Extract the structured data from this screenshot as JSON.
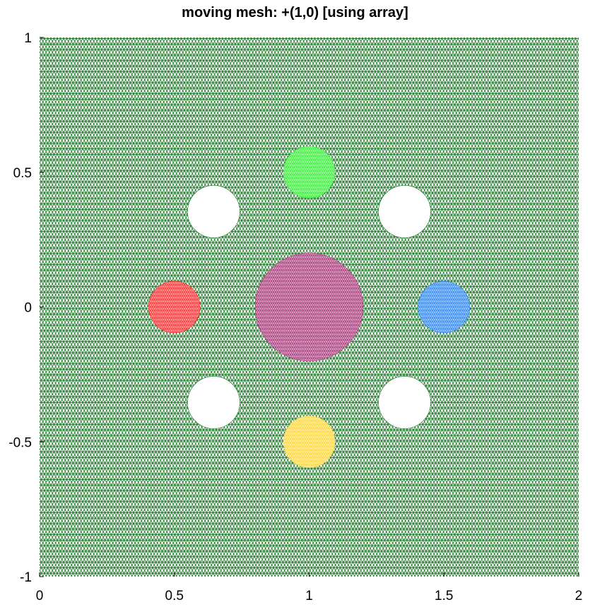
{
  "chart_data": {
    "type": "scatter",
    "title": "moving mesh: +(1,0) [using array]",
    "xlabel": "",
    "ylabel": "",
    "xlim": [
      0,
      2
    ],
    "ylim": [
      -1,
      1
    ],
    "x_ticks": [
      "0",
      "0.5",
      "1",
      "1.5",
      "2"
    ],
    "y_ticks": [
      "-1",
      "-0.5",
      "0",
      "0.5",
      "1"
    ],
    "x_tick_values": [
      0,
      0.5,
      1,
      1.5,
      2
    ],
    "y_tick_values": [
      -1,
      -0.5,
      0,
      0.5,
      1
    ],
    "grid": false,
    "mesh": {
      "color": "#1f7a2a",
      "background": "#ffffff",
      "element": "triangles"
    },
    "subdomains": [
      {
        "shape": "circle",
        "center": [
          1.0,
          0.0
        ],
        "radius": 0.2,
        "color": "#a8377a"
      },
      {
        "shape": "circle",
        "center": [
          0.5,
          0.0
        ],
        "radius": 0.095,
        "color": "#ff2a2a"
      },
      {
        "shape": "circle",
        "center": [
          1.0,
          0.5
        ],
        "radius": 0.095,
        "color": "#33f033"
      },
      {
        "shape": "circle",
        "center": [
          1.5,
          0.0
        ],
        "radius": 0.095,
        "color": "#2a86f5"
      },
      {
        "shape": "circle",
        "center": [
          1.0,
          -0.5
        ],
        "radius": 0.095,
        "color": "#ffd633"
      }
    ],
    "holes": [
      {
        "center": [
          0.646,
          0.354
        ],
        "radius": 0.097
      },
      {
        "center": [
          1.354,
          0.354
        ],
        "radius": 0.097
      },
      {
        "center": [
          0.646,
          -0.354
        ],
        "radius": 0.097
      },
      {
        "center": [
          1.354,
          -0.354
        ],
        "radius": 0.097
      }
    ]
  }
}
